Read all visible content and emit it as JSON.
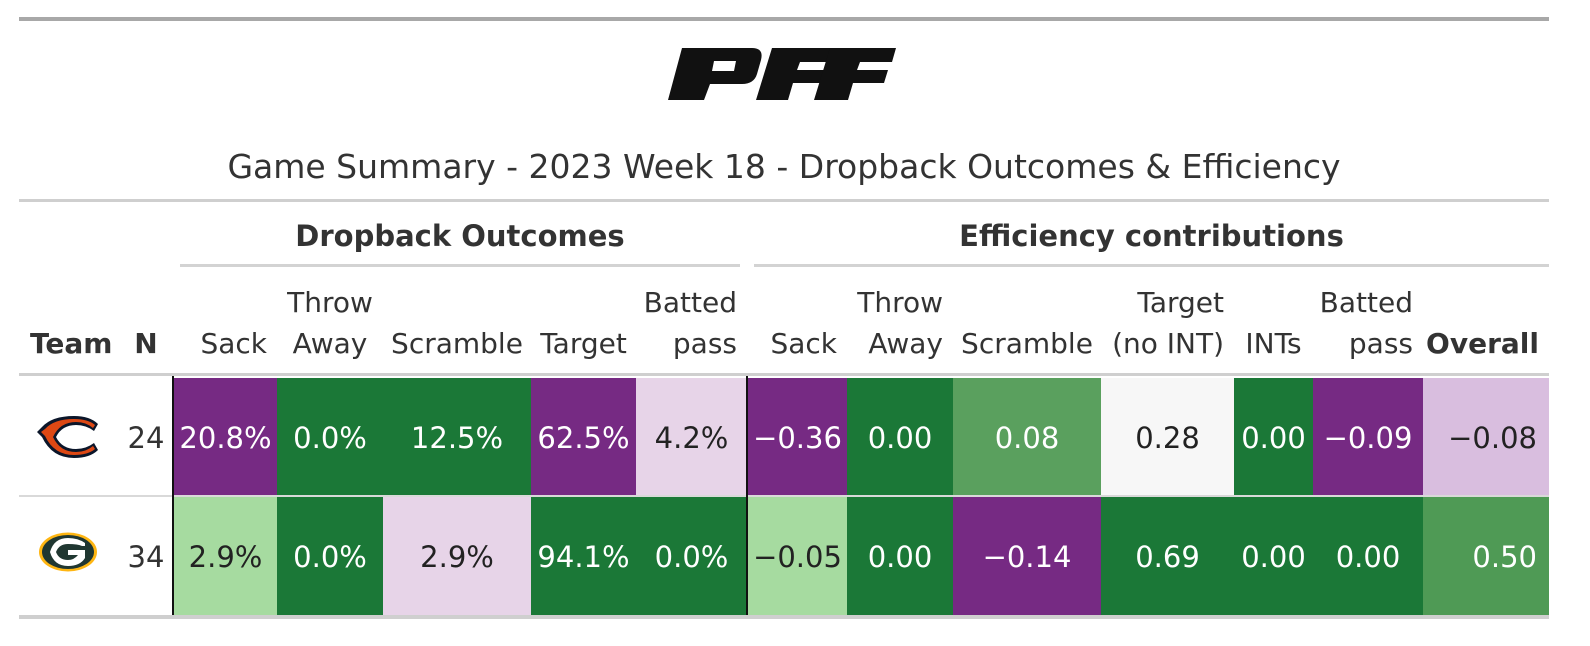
{
  "brand": "PFF",
  "title": "Game Summary - 2023 Week 18 - Dropback Outcomes & Efficiency",
  "groups": {
    "outcomes": "Dropback Outcomes",
    "efficiency": "Efficiency contributions"
  },
  "headers": {
    "team": "Team",
    "n": "N",
    "sack": "Sack",
    "throw_away": "Throw\nAway",
    "scramble": "Scramble",
    "target": "Target",
    "batted": "Batted\npass",
    "e_sack": "Sack",
    "e_throw_away": "Throw\nAway",
    "e_scramble": "Scramble",
    "e_target": "Target\n(no INT)",
    "e_ints": "INTs",
    "e_batted": "Batted\npass",
    "overall": "Overall"
  },
  "colors": {
    "dark_purple": "#762a83",
    "light_purple": "#e7d4e8",
    "pale_purple": "#d9bedf",
    "dark_green": "#1b7837",
    "mid_green": "#5aa05e",
    "light_green": "#a6dba0",
    "neutral": "#f7f7f7"
  },
  "rows": [
    {
      "team_logo": "bears-logo",
      "n": "24",
      "outcomes": [
        {
          "text": "20.8%",
          "bg": "#762a83",
          "fg": "#ffffff"
        },
        {
          "text": "0.0%",
          "bg": "#1b7837",
          "fg": "#ffffff"
        },
        {
          "text": "12.5%",
          "bg": "#1b7837",
          "fg": "#ffffff"
        },
        {
          "text": "62.5%",
          "bg": "#762a83",
          "fg": "#ffffff"
        },
        {
          "text": "4.2%",
          "bg": "#e7d4e8",
          "fg": "#222222"
        }
      ],
      "efficiency": [
        {
          "text": "−0.36",
          "bg": "#762a83",
          "fg": "#ffffff"
        },
        {
          "text": "0.00",
          "bg": "#1b7837",
          "fg": "#ffffff"
        },
        {
          "text": "0.08",
          "bg": "#5aa05e",
          "fg": "#ffffff"
        },
        {
          "text": "0.28",
          "bg": "#f7f7f7",
          "fg": "#222222"
        },
        {
          "text": "0.00",
          "bg": "#1b7837",
          "fg": "#ffffff"
        },
        {
          "text": "−0.09",
          "bg": "#762a83",
          "fg": "#ffffff"
        },
        {
          "text": "−0.08",
          "bg": "#d9bedf",
          "fg": "#222222"
        }
      ]
    },
    {
      "team_logo": "packers-logo",
      "n": "34",
      "outcomes": [
        {
          "text": "2.9%",
          "bg": "#a6dba0",
          "fg": "#222222"
        },
        {
          "text": "0.0%",
          "bg": "#1b7837",
          "fg": "#ffffff"
        },
        {
          "text": "2.9%",
          "bg": "#e7d4e8",
          "fg": "#222222"
        },
        {
          "text": "94.1%",
          "bg": "#1b7837",
          "fg": "#ffffff"
        },
        {
          "text": "0.0%",
          "bg": "#1b7837",
          "fg": "#ffffff"
        }
      ],
      "efficiency": [
        {
          "text": "−0.05",
          "bg": "#a6dba0",
          "fg": "#222222"
        },
        {
          "text": "0.00",
          "bg": "#1b7837",
          "fg": "#ffffff"
        },
        {
          "text": "−0.14",
          "bg": "#762a83",
          "fg": "#ffffff"
        },
        {
          "text": "0.69",
          "bg": "#1b7837",
          "fg": "#ffffff"
        },
        {
          "text": "0.00",
          "bg": "#1b7837",
          "fg": "#ffffff"
        },
        {
          "text": "0.00",
          "bg": "#1b7837",
          "fg": "#ffffff"
        },
        {
          "text": "0.50",
          "bg": "#4f9a55",
          "fg": "#ffffff"
        }
      ]
    }
  ]
}
